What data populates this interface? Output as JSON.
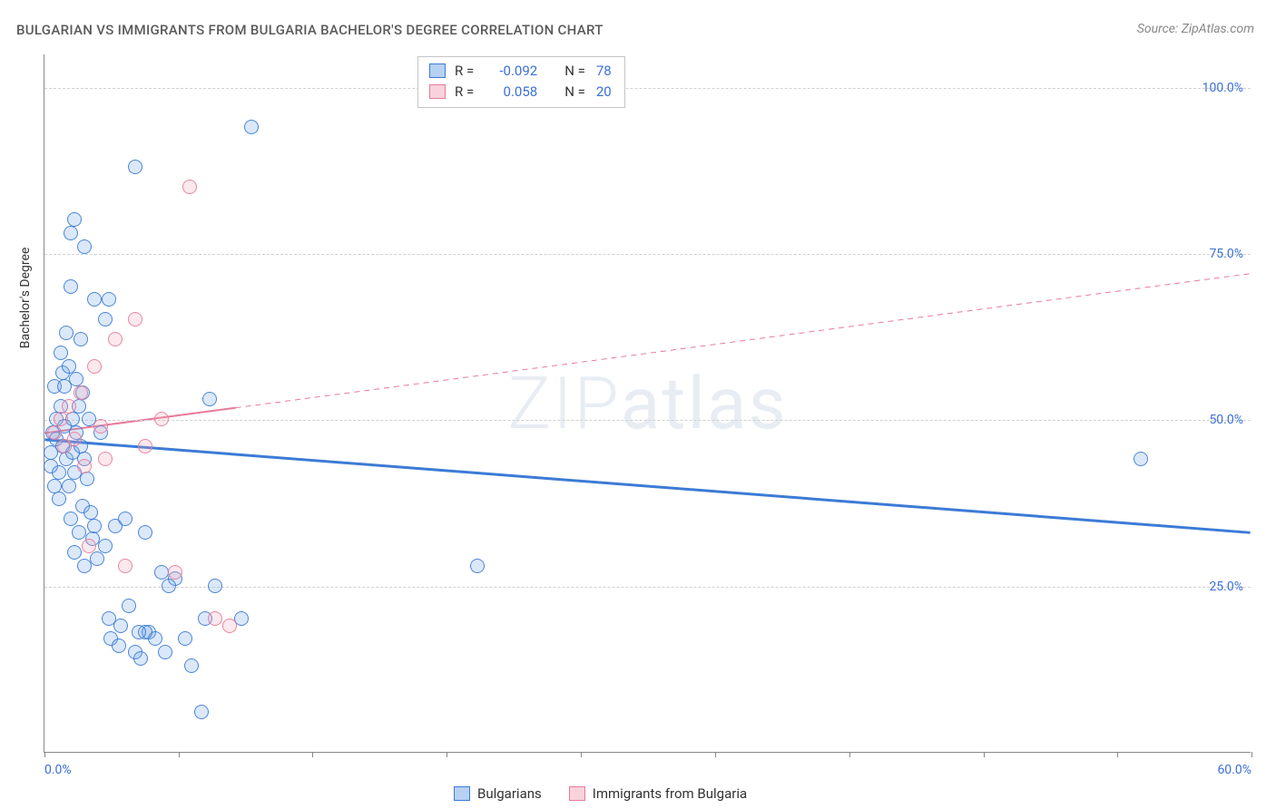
{
  "title": "BULGARIAN VS IMMIGRANTS FROM BULGARIA BACHELOR'S DEGREE CORRELATION CHART",
  "source": "Source: ZipAtlas.com",
  "ylabel": "Bachelor's Degree",
  "watermark_text": "ZIPatlas",
  "chart": {
    "type": "scatter",
    "background_color": "#ffffff",
    "grid_color": "#d0d0d0",
    "axis_color": "#888888",
    "tick_label_color": "#3b6fd8",
    "xlim": [
      0,
      60
    ],
    "ylim": [
      0,
      105
    ],
    "xticks": [
      0,
      6.67,
      13.33,
      20,
      26.67,
      33.33,
      40,
      46.67,
      53.33,
      60
    ],
    "xtick_labels": {
      "0": "0.0%",
      "60": "60.0%"
    },
    "yticks": [
      25,
      50,
      75,
      100
    ],
    "ytick_labels": {
      "25": "25.0%",
      "50": "50.0%",
      "75": "75.0%",
      "100": "100.0%"
    },
    "marker_radius": 8,
    "marker_stroke_opacity": 0.9,
    "marker_fill_opacity": 0.25,
    "series": [
      {
        "key": "bulgarians",
        "label": "Bulgarians",
        "color": "#6fa3e8",
        "stroke": "#3b7bd6",
        "r_label": "R =",
        "r_value": "-0.092",
        "n_label": "N =",
        "n_value": "78",
        "trend": {
          "x1": 0,
          "y1": 47,
          "x2": 60,
          "y2": 33,
          "width": 3,
          "dash": "none"
        },
        "trend_solid_until_x": 60,
        "points": [
          [
            0.3,
            45
          ],
          [
            0.3,
            43
          ],
          [
            0.4,
            48
          ],
          [
            0.5,
            40
          ],
          [
            0.5,
            55
          ],
          [
            0.6,
            47
          ],
          [
            0.6,
            50
          ],
          [
            0.7,
            38
          ],
          [
            0.7,
            42
          ],
          [
            0.8,
            60
          ],
          [
            0.8,
            52
          ],
          [
            0.9,
            57
          ],
          [
            0.9,
            46
          ],
          [
            1.0,
            55
          ],
          [
            1.0,
            49
          ],
          [
            1.1,
            63
          ],
          [
            1.1,
            44
          ],
          [
            1.2,
            58
          ],
          [
            1.2,
            40
          ],
          [
            1.3,
            35
          ],
          [
            1.3,
            70
          ],
          [
            1.4,
            45
          ],
          [
            1.4,
            50
          ],
          [
            1.5,
            30
          ],
          [
            1.5,
            42
          ],
          [
            1.6,
            48
          ],
          [
            1.6,
            56
          ],
          [
            1.7,
            33
          ],
          [
            1.7,
            52
          ],
          [
            1.8,
            46
          ],
          [
            1.8,
            62
          ],
          [
            1.9,
            37
          ],
          [
            1.9,
            54
          ],
          [
            2.0,
            28
          ],
          [
            2.0,
            44
          ],
          [
            2.1,
            41
          ],
          [
            2.2,
            50
          ],
          [
            2.3,
            36
          ],
          [
            2.4,
            32
          ],
          [
            2.5,
            34
          ],
          [
            2.6,
            29
          ],
          [
            2.8,
            48
          ],
          [
            3.0,
            31
          ],
          [
            3.2,
            20
          ],
          [
            3.3,
            17
          ],
          [
            3.5,
            34
          ],
          [
            3.7,
            16
          ],
          [
            3.8,
            19
          ],
          [
            4.0,
            35
          ],
          [
            4.2,
            22
          ],
          [
            4.5,
            15
          ],
          [
            4.8,
            14
          ],
          [
            5.0,
            33
          ],
          [
            5.2,
            18
          ],
          [
            5.5,
            17
          ],
          [
            5.8,
            27
          ],
          [
            6.0,
            15
          ],
          [
            6.5,
            26
          ],
          [
            7.0,
            17
          ],
          [
            7.3,
            13
          ],
          [
            7.8,
            6
          ],
          [
            8.0,
            20
          ],
          [
            8.2,
            53
          ],
          [
            8.5,
            25
          ],
          [
            9.8,
            20
          ],
          [
            10.3,
            94
          ],
          [
            3.2,
            68
          ],
          [
            1.5,
            80
          ],
          [
            4.5,
            88
          ],
          [
            2.0,
            76
          ],
          [
            2.5,
            68
          ],
          [
            1.3,
            78
          ],
          [
            3.0,
            65
          ],
          [
            5.0,
            18
          ],
          [
            21.5,
            28
          ],
          [
            54.5,
            44
          ],
          [
            6.2,
            25
          ],
          [
            4.7,
            18
          ]
        ]
      },
      {
        "key": "immigrants",
        "label": "Immigrants from Bulgaria",
        "color": "#f4a8b8",
        "stroke": "#e87a9a",
        "r_label": "R =",
        "r_value": "0.058",
        "n_label": "N =",
        "n_value": "20",
        "trend": {
          "x1": 0,
          "y1": 48,
          "x2": 60,
          "y2": 72,
          "width": 2,
          "dash": "5,4"
        },
        "trend_solid_until_x": 9.5,
        "points": [
          [
            0.5,
            48
          ],
          [
            0.8,
            50
          ],
          [
            1.0,
            46
          ],
          [
            1.2,
            52
          ],
          [
            1.5,
            47
          ],
          [
            1.8,
            54
          ],
          [
            2.0,
            43
          ],
          [
            2.2,
            31
          ],
          [
            2.5,
            58
          ],
          [
            2.8,
            49
          ],
          [
            3.0,
            44
          ],
          [
            3.5,
            62
          ],
          [
            4.0,
            28
          ],
          [
            4.5,
            65
          ],
          [
            5.0,
            46
          ],
          [
            5.8,
            50
          ],
          [
            7.2,
            85
          ],
          [
            8.5,
            20
          ],
          [
            9.2,
            19
          ],
          [
            6.5,
            27
          ]
        ]
      }
    ]
  },
  "legend_bottom": [
    {
      "key": "bulgarians",
      "label": "Bulgarians"
    },
    {
      "key": "immigrants",
      "label": "Immigrants from Bulgaria"
    }
  ]
}
